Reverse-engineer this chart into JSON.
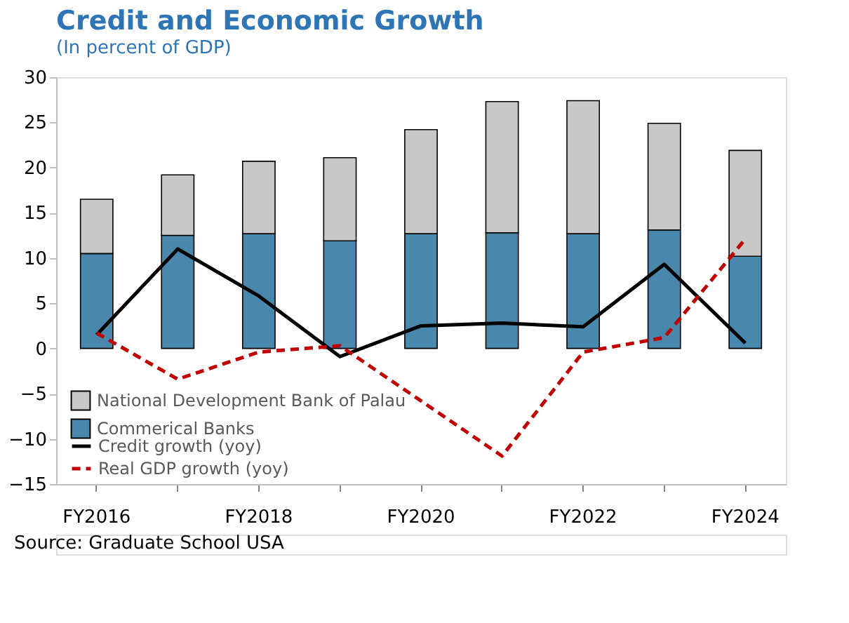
{
  "chart_data": {
    "type": "bar",
    "stacked": true,
    "title": "Credit and Economic Growth",
    "subtitle": "(In percent of GDP)",
    "categories": [
      "FY2016",
      null,
      "FY2018",
      null,
      "FY2020",
      null,
      "FY2022",
      null,
      "FY2024"
    ],
    "series": [
      {
        "name": "Commerical Banks",
        "color": "#4a87ad",
        "values": [
          10.5,
          12.5,
          12.7,
          11.9,
          12.7,
          12.8,
          12.7,
          13.1,
          10.2
        ]
      },
      {
        "name": "National Development Bank of Palau",
        "color": "#c8c8c8",
        "values": [
          6.0,
          6.7,
          8.0,
          9.2,
          11.5,
          14.5,
          14.7,
          11.8,
          11.7
        ]
      },
      {
        "name": "Credit growth (yoy)",
        "type": "line",
        "color": "#000000",
        "line_style": "solid",
        "values": [
          1.5,
          11.0,
          5.8,
          -0.9,
          2.5,
          2.8,
          2.4,
          9.3,
          0.6
        ]
      },
      {
        "name": "Real GDP growth (yoy)",
        "type": "line",
        "color": "#c00000",
        "line_style": "dashed",
        "values": [
          1.7,
          -3.4,
          -0.4,
          0.3,
          -5.8,
          -11.9,
          -0.4,
          1.2,
          12.1
        ]
      }
    ],
    "ylim": [
      -15,
      30
    ],
    "yticks": [
      -15,
      -10,
      -5,
      0,
      5,
      10,
      15,
      20,
      25,
      30
    ],
    "grid": false,
    "legend": "bottom left",
    "annotations": [
      "Source: Graduate School USA"
    ]
  }
}
